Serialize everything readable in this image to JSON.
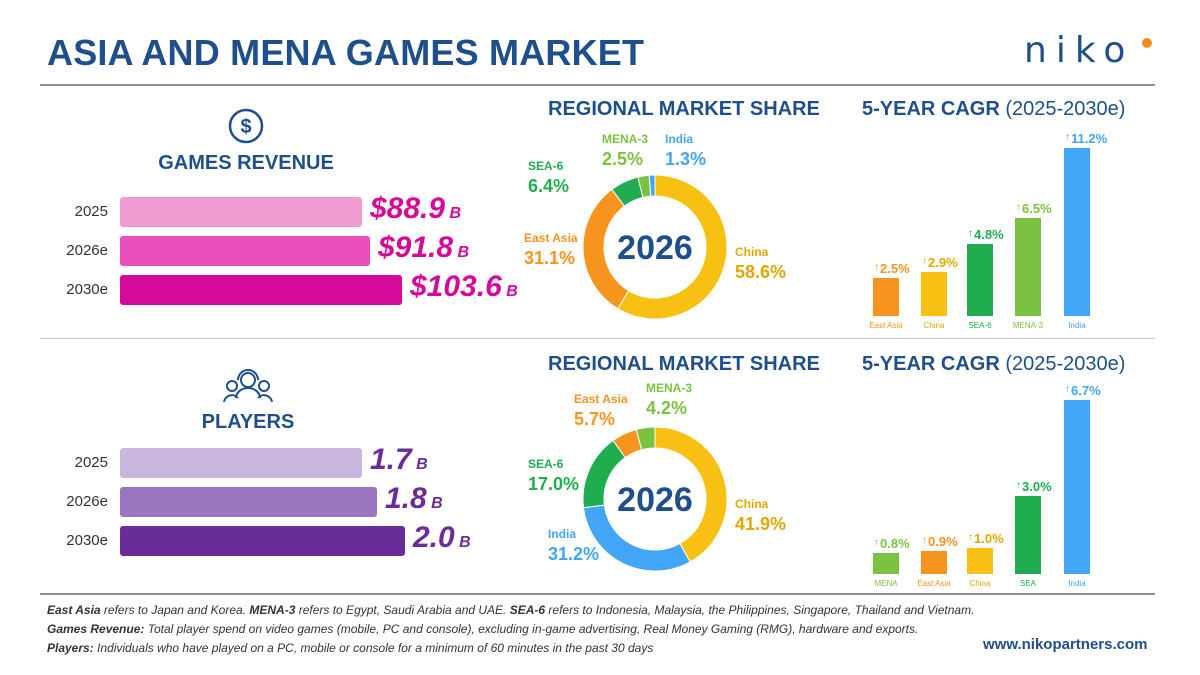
{
  "header": {
    "title": "ASIA AND MENA GAMES MARKET",
    "logo_text": "niko"
  },
  "revenue": {
    "label": "GAMES REVENUE",
    "rows": [
      {
        "year": "2025",
        "value": 88.9,
        "display": "$88.9",
        "unit": "B"
      },
      {
        "year": "2026e",
        "value": 91.8,
        "display": "$91.8",
        "unit": "B"
      },
      {
        "year": "2030e",
        "value": 103.6,
        "display": "$103.6",
        "unit": "B"
      }
    ]
  },
  "players": {
    "label": "PLAYERS",
    "rows": [
      {
        "year": "2025",
        "value": 1.7,
        "display": "1.7",
        "unit": "B"
      },
      {
        "year": "2026e",
        "value": 1.8,
        "display": "1.8",
        "unit": "B"
      },
      {
        "year": "2030e",
        "value": 2.0,
        "display": "2.0",
        "unit": "B"
      }
    ]
  },
  "labels": {
    "share_title": "REGIONAL MARKET SHARE",
    "cagr_title": "5-YEAR CAGR",
    "cagr_period": "(2025-2030e)",
    "donut_center": "2026"
  },
  "chart_data": [
    {
      "type": "bar",
      "title": "GAMES REVENUE",
      "categories": [
        "2025",
        "2026e",
        "2030e"
      ],
      "values": [
        88.9,
        91.8,
        103.6
      ]
    },
    {
      "type": "pie",
      "title": "REGIONAL MARKET SHARE",
      "slices": [
        {
          "name": "China",
          "value": 58.6,
          "color": "#f8c012"
        },
        {
          "name": "East Asia",
          "value": 31.1,
          "color": "#f7941d"
        },
        {
          "name": "SEA-6",
          "value": 6.4,
          "color": "#1fad4f"
        },
        {
          "name": "MENA-3",
          "value": 2.5,
          "color": "#7cc242"
        },
        {
          "name": "India",
          "value": 1.3,
          "color": "#42a5f5"
        }
      ]
    },
    {
      "type": "bar",
      "title": "5-YEAR CAGR (2025-2030e)",
      "categories": [
        "East Asia",
        "China",
        "SEA-6",
        "MENA-3",
        "India"
      ],
      "values": [
        2.5,
        2.9,
        4.8,
        6.5,
        11.2
      ],
      "colors": [
        "#f7941d",
        "#f8c012",
        "#1fad4f",
        "#7cc242",
        "#42a5f5"
      ]
    },
    {
      "type": "bar",
      "title": "PLAYERS",
      "categories": [
        "2025",
        "2026e",
        "2030e"
      ],
      "values": [
        1.7,
        1.8,
        2.0
      ]
    },
    {
      "type": "pie",
      "title": "REGIONAL MARKET SHARE",
      "slices": [
        {
          "name": "China",
          "value": 41.9,
          "color": "#f8c012"
        },
        {
          "name": "India",
          "value": 31.2,
          "color": "#42a5f5"
        },
        {
          "name": "SEA-6",
          "value": 17.0,
          "color": "#1fad4f"
        },
        {
          "name": "East Asia",
          "value": 5.7,
          "color": "#f7941d"
        },
        {
          "name": "MENA-3",
          "value": 4.2,
          "color": "#7cc242"
        }
      ]
    },
    {
      "type": "bar",
      "title": "5-YEAR CAGR (2025-2030e)",
      "categories": [
        "MENA",
        "East Asia",
        "China",
        "SEA",
        "India"
      ],
      "values": [
        0.8,
        0.9,
        1.0,
        3.0,
        6.7
      ],
      "colors": [
        "#7cc242",
        "#f7941d",
        "#f8c012",
        "#1fad4f",
        "#42a5f5"
      ]
    }
  ],
  "footer": {
    "line1_b1": "East Asia",
    "line1_t1": " refers to Japan and Korea. ",
    "line1_b2": "MENA-3",
    "line1_t2": " refers to Egypt, Saudi Arabia and UAE. ",
    "line1_b3": "SEA-6",
    "line1_t3": " refers to Indonesia, Malaysia, the Philippines, Singapore, Thailand and Vietnam.",
    "line2_b": "Games Revenue:",
    "line2_t": " Total player spend on video games (mobile, PC and console), excluding in-game advertising, Real Money Gaming (RMG), hardware and exports.",
    "line3_b": "Players:",
    "line3_t": " Individuals who have played on a PC, mobile or console for a minimum of 60 minutes in the past 30 days",
    "url": "www.nikopartners.com"
  }
}
